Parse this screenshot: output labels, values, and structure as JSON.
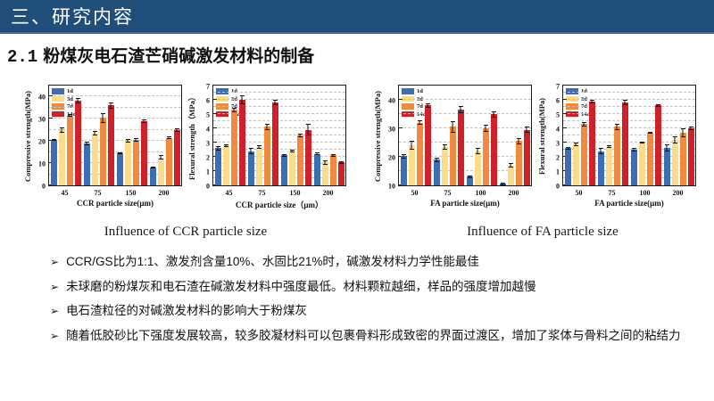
{
  "header": {
    "title": "三、研究内容"
  },
  "subtitle": {
    "number": "2.1",
    "text": "粉煤灰电石渣芒硝碱激发材料的制备"
  },
  "figure_captions": {
    "left": "Influence of CCR particle size",
    "right": "Influence of FA particle size"
  },
  "bullets": {
    "marker": "➢",
    "items": [
      "CCR/GS比为1:1、激发剂含量10%、水固比21%时，碱激发材料力学性能最佳",
      "未球磨的粉煤灰和电石渣在碱激发材料中强度最低。材料颗粒越细，样品的强度增加越慢",
      "电石渣粒径的对碱激发材料的影响大于粉煤灰",
      "随着低胶砂比下强度发展较高，较多胶凝材料可以包裹骨料形成致密的界面过渡区，增加了浆体与骨料之间的粘结力"
    ]
  },
  "colors": {
    "header_bg": "#1F4E79",
    "series_1d": "#3A6FB5",
    "series_3d": "#FBDC8B",
    "series_7d": "#F08A3E",
    "series_14d": "#CE2129"
  },
  "chart_data": [
    {
      "type": "bar",
      "ylabel": "Compressive strength(MPa)",
      "xlabel": "CCR particle size(μm)",
      "categories": [
        "45",
        "75",
        "150",
        "200"
      ],
      "ylim": [
        0,
        45
      ],
      "yticks": [
        0,
        10,
        20,
        30,
        40
      ],
      "grid_step": 5,
      "legend_position": "top-left",
      "series": [
        {
          "name": "1d",
          "color": "#3A6FB5",
          "values": [
            20.5,
            19.0,
            14.5,
            8.0
          ],
          "errors": [
            0.6,
            0.8,
            0.5,
            0.4
          ]
        },
        {
          "name": "3d",
          "color": "#FBDC8B",
          "values": [
            25.0,
            23.5,
            20.0,
            12.5
          ],
          "errors": [
            1.2,
            0.9,
            0.8,
            1.0
          ]
        },
        {
          "name": "7d",
          "color": "#F08A3E",
          "values": [
            31.5,
            30.5,
            20.5,
            21.5
          ],
          "errors": [
            0.5,
            2.2,
            1.0,
            0.7
          ]
        },
        {
          "name": "14d",
          "color": "#CE2129",
          "values": [
            38.0,
            36.0,
            29.0,
            25.0
          ],
          "errors": [
            1.2,
            1.3,
            0.8,
            0.8
          ]
        }
      ]
    },
    {
      "type": "bar",
      "ylabel": "Flexural strength（MPa）",
      "xlabel": "CCR particle size（μm）",
      "categories": [
        "45",
        "75",
        "150",
        "200"
      ],
      "ylim": [
        0,
        7
      ],
      "yticks": [
        0,
        1,
        2,
        3,
        4,
        5,
        6,
        7
      ],
      "grid_step": 0.5,
      "legend_position": "top-left",
      "series": [
        {
          "name": "1d",
          "color": "#3A6FB5",
          "values": [
            2.6,
            2.4,
            2.1,
            2.2
          ],
          "errors": [
            0.15,
            0.2,
            0.08,
            0.1
          ]
        },
        {
          "name": "3d",
          "color": "#FBDC8B",
          "values": [
            2.8,
            2.7,
            2.4,
            1.6
          ],
          "errors": [
            0.1,
            0.12,
            0.08,
            0.15
          ]
        },
        {
          "name": "7d",
          "color": "#F08A3E",
          "values": [
            5.3,
            4.1,
            3.5,
            2.1
          ],
          "errors": [
            0.15,
            0.2,
            0.1,
            0.08
          ]
        },
        {
          "name": "14d",
          "color": "#CE2129",
          "values": [
            6.0,
            5.8,
            3.9,
            1.6
          ],
          "errors": [
            0.3,
            0.2,
            0.4,
            0.07
          ]
        }
      ]
    },
    {
      "type": "bar",
      "ylabel": "Compressive strength(MPa)",
      "xlabel": "FA particle size(μm)",
      "categories": [
        "50",
        "75",
        "100",
        "200"
      ],
      "ylim": [
        10,
        45
      ],
      "yticks": [
        10,
        20,
        30,
        40
      ],
      "grid_step": 5,
      "legend_position": "top-left",
      "series": [
        {
          "name": "1d",
          "color": "#3A6FB5",
          "values": [
            20.3,
            19.0,
            13.0,
            10.5
          ],
          "errors": [
            0.8,
            0.8,
            0.5,
            0.4
          ]
        },
        {
          "name": "3d",
          "color": "#FBDC8B",
          "values": [
            24.0,
            23.5,
            22.0,
            17.0
          ],
          "errors": [
            1.5,
            0.9,
            1.0,
            0.9
          ]
        },
        {
          "name": "7d",
          "color": "#F08A3E",
          "values": [
            32.0,
            30.5,
            30.0,
            25.5
          ],
          "errors": [
            0.9,
            2.0,
            1.2,
            1.0
          ]
        },
        {
          "name": "14d",
          "color": "#CE2129",
          "values": [
            38.0,
            36.5,
            35.0,
            29.5
          ],
          "errors": [
            0.9,
            1.2,
            1.1,
            1.2
          ]
        }
      ]
    },
    {
      "type": "bar",
      "ylabel": "Flexural strength(MPa)",
      "xlabel": "FA particle size(μm)",
      "categories": [
        "50",
        "75",
        "100",
        "200"
      ],
      "ylim": [
        0,
        7
      ],
      "yticks": [
        0,
        1,
        2,
        3,
        4,
        5,
        6,
        7
      ],
      "grid_step": 0.5,
      "legend_position": "top-left",
      "series": [
        {
          "name": "1d",
          "color": "#3A6FB5",
          "values": [
            2.6,
            2.4,
            2.5,
            2.6
          ],
          "errors": [
            0.1,
            0.2,
            0.12,
            0.25
          ]
        },
        {
          "name": "3d",
          "color": "#FBDC8B",
          "values": [
            2.9,
            2.7,
            3.0,
            3.2
          ],
          "errors": [
            0.12,
            0.1,
            0.06,
            0.25
          ]
        },
        {
          "name": "7d",
          "color": "#F08A3E",
          "values": [
            4.3,
            4.1,
            3.7,
            3.7
          ],
          "errors": [
            0.15,
            0.2,
            0.06,
            0.3
          ]
        },
        {
          "name": "14d",
          "color": "#CE2129",
          "values": [
            5.9,
            5.8,
            5.6,
            4.0
          ],
          "errors": [
            0.12,
            0.2,
            0.08,
            0.15
          ]
        }
      ]
    }
  ]
}
